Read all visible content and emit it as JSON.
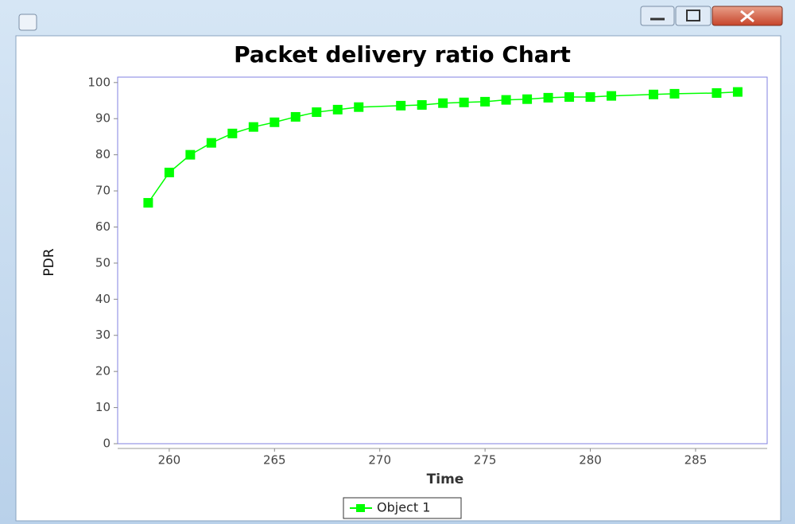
{
  "chart_data": {
    "type": "line",
    "title": "Packet delivery ratio Chart",
    "xlabel": "Time",
    "ylabel": "PDR",
    "x": [
      259,
      260,
      261,
      262,
      263,
      264,
      265,
      266,
      267,
      268,
      269,
      271,
      272,
      273,
      274,
      275,
      276,
      277,
      278,
      279,
      280,
      281,
      283,
      284,
      286,
      287
    ],
    "series": [
      {
        "name": "Object 1",
        "color": "#00ff00",
        "values": [
          66.7,
          75.1,
          80,
          83.3,
          85.9,
          87.7,
          89,
          90.5,
          91.8,
          92.5,
          93.2,
          93.6,
          93.8,
          94.3,
          94.5,
          94.7,
          95.2,
          95.4,
          95.8,
          96,
          96,
          96.3,
          96.7,
          96.9,
          97.1,
          97.4
        ]
      }
    ],
    "xlim": [
      257.55,
      288.4
    ],
    "xticks": [
      260,
      265,
      270,
      275,
      280,
      285
    ],
    "ylim": [
      0,
      101.5
    ],
    "yticks": [
      0,
      10,
      20,
      30,
      40,
      50,
      60,
      70,
      80,
      90,
      100
    ],
    "legend": "bottom"
  }
}
